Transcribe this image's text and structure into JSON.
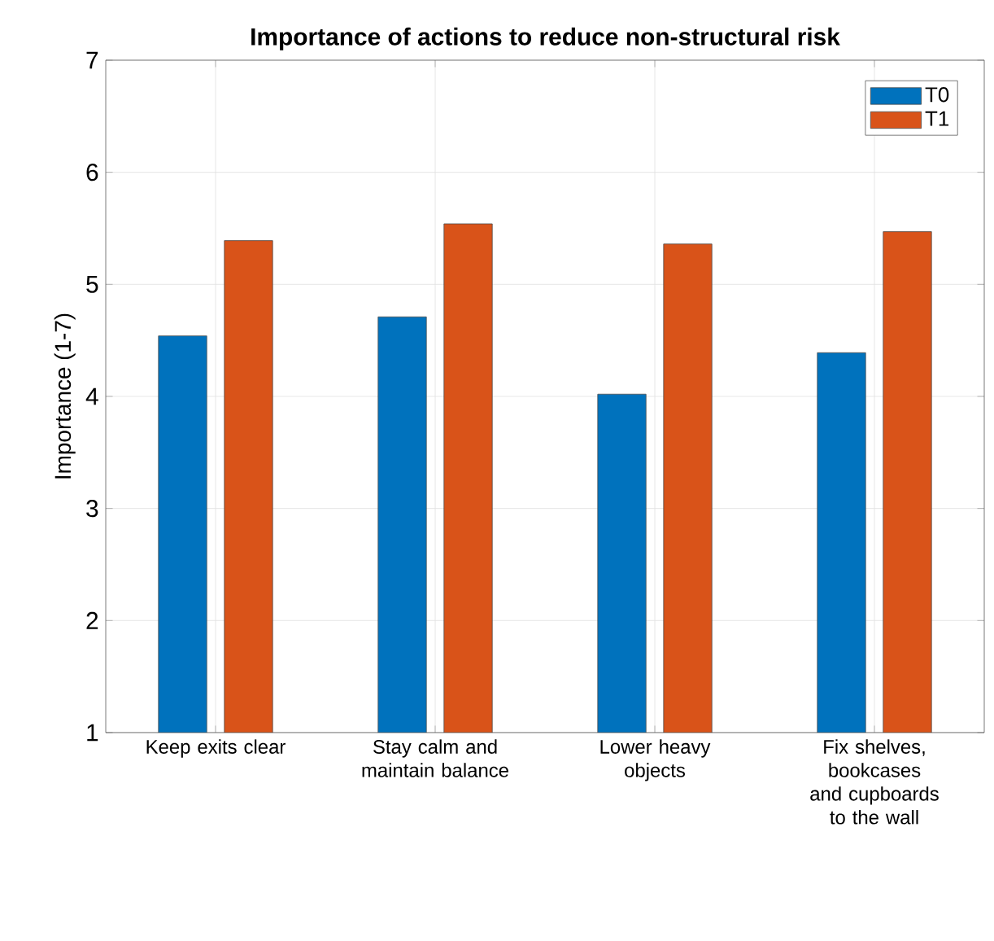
{
  "chart_data": {
    "type": "bar",
    "title": "Importance of actions to reduce non-structural risk",
    "ylabel": "Importance (1-7)",
    "categories": [
      "Keep exits clear",
      "Stay calm and maintain balance",
      "Lower heavy objects",
      "Fix shelves, bookcases and cupboards to the wall"
    ],
    "series": [
      {
        "name": "T0",
        "color": "#0072bd",
        "values": [
          4.54,
          4.71,
          4.02,
          4.39
        ]
      },
      {
        "name": "T1",
        "color": "#d95319",
        "values": [
          5.39,
          5.54,
          5.36,
          5.47
        ]
      }
    ],
    "ylim": [
      1,
      7
    ],
    "yticks": [
      1,
      2,
      3,
      4,
      5,
      6,
      7
    ],
    "grid": true,
    "legend": "top right"
  }
}
